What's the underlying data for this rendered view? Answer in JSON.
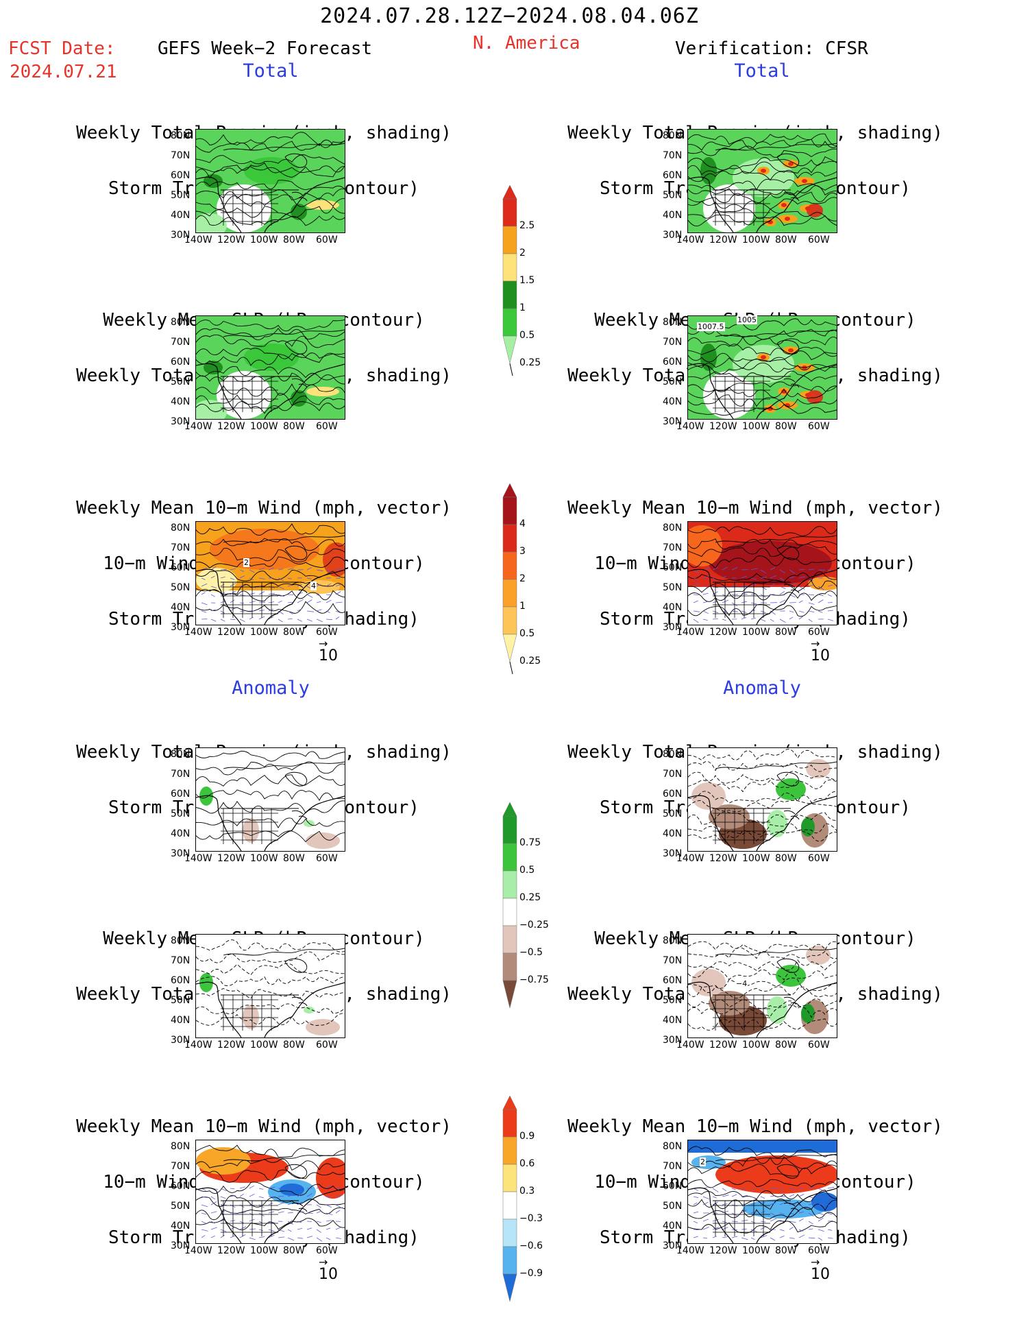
{
  "header": {
    "date_range": "2024.07.28.12Z−2024.08.04.06Z",
    "fcst_label": "FCST Date:",
    "fcst_date": "2024.07.21",
    "forecast_name": "GEFS Week−2 Forecast",
    "region": "N. America",
    "verification": "Verification: CFSR"
  },
  "sections": {
    "total": "Total",
    "anomaly": "Anomaly"
  },
  "titles": {
    "precip_track": [
      "Weekly Total Precip (inch, shading)",
      "Storm Track Density (contour)"
    ],
    "slp_precip": [
      "Weekly Mean SLP (hPa, contour)",
      "Weekly Total Precip (inch, shading)"
    ],
    "wind_track": [
      "Weekly Mean 10−m Wind (mph, vector)",
      "10−m Wind Speed (mph, contour)",
      "Storm Track Density (shading)"
    ]
  },
  "axes": {
    "lat_labels": [
      "80N",
      "70N",
      "60N",
      "50N",
      "40N",
      "30N"
    ],
    "lon_labels": [
      "140W",
      "120W",
      "100W",
      "80W",
      "60W"
    ]
  },
  "vector_scale": "10",
  "colorbars": {
    "precip_total": {
      "labels": [
        "2.5",
        "2",
        "1.5",
        "1",
        "0.5",
        "0.25"
      ],
      "colors": [
        "#dd2a1a",
        "#f6a21c",
        "#fde27a",
        "#1f8f1f",
        "#3ac83a",
        "#a5f0a5"
      ]
    },
    "track_total": {
      "labels": [
        "4",
        "3",
        "2",
        "1",
        "0.5",
        "0.25"
      ],
      "colors": [
        "#a5141a",
        "#dc2a1a",
        "#f6661c",
        "#fba12a",
        "#fdc557",
        "#fff2a6"
      ]
    },
    "precip_anom": {
      "labels": [
        "0.75",
        "0.5",
        "0.25",
        "−0.25",
        "−0.5",
        "−0.75"
      ],
      "colors": [
        "#1f9a2a",
        "#3cc43c",
        "#a8eea8",
        "#ffffff",
        "#e2c5bb",
        "#b28b7a",
        "#7a4a38"
      ]
    },
    "track_anom": {
      "labels": [
        "0.9",
        "0.6",
        "0.3",
        "−0.3",
        "−0.6",
        "−0.9"
      ],
      "colors": [
        "#ec3b1a",
        "#f8a628",
        "#fde47a",
        "#ffffff",
        "#b6e5f8",
        "#56b3ee",
        "#1e6cd8"
      ]
    }
  },
  "map_labels": {
    "total_wind_fcst": "2",
    "total_wind_fcst_b": "4",
    "total_slp_obs_a": "1005",
    "total_slp_obs_b": "1007.5",
    "anom_slp_obs": "−4",
    "anom_wind_obs": "2"
  }
}
